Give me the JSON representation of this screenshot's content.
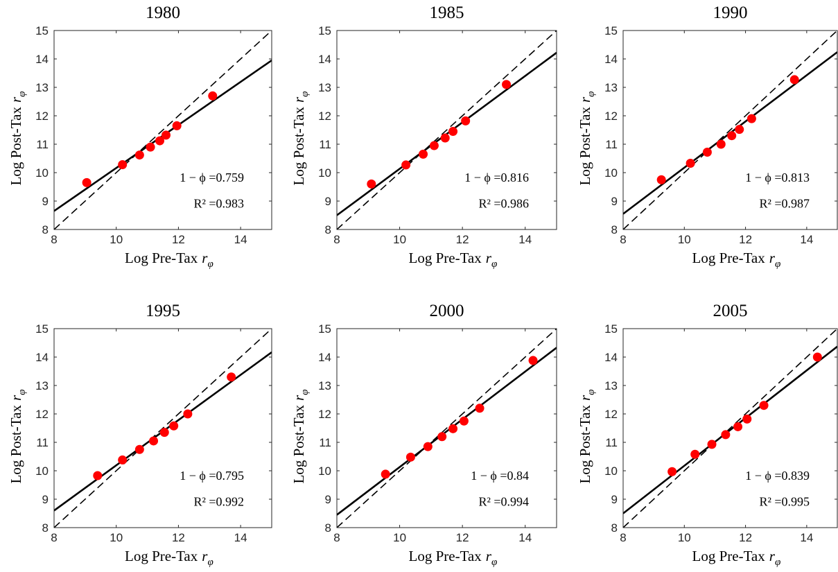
{
  "chart_data": [
    {
      "type": "scatter",
      "title": "1980",
      "xlabel": {
        "text": "Log Pre-Tax",
        "var": "r",
        "sub": "φ"
      },
      "ylabel": {
        "text": "Log Post-Tax",
        "var": "r",
        "sub": "φ"
      },
      "x": [
        9.05,
        10.2,
        10.75,
        11.1,
        11.4,
        11.6,
        11.95,
        13.1
      ],
      "values": [
        9.65,
        10.28,
        10.62,
        10.9,
        11.12,
        11.32,
        11.65,
        12.7
      ],
      "color": "#ff0000",
      "fit_line": {
        "x": [
          8,
          15
        ],
        "values": [
          8.65,
          13.95
        ]
      },
      "reference_line": {
        "x": [
          8,
          15
        ],
        "values": [
          8,
          15
        ]
      },
      "annotations": [
        "1 − ϕ =0.759",
        "R² =0.983"
      ],
      "xlim": [
        8,
        15
      ],
      "ylim": [
        8,
        15
      ],
      "xticks": [
        8,
        10,
        12,
        14
      ],
      "yticks": [
        8,
        9,
        10,
        11,
        12,
        13,
        14,
        15
      ]
    },
    {
      "type": "scatter",
      "title": "1985",
      "xlabel": {
        "text": "Log Pre-Tax",
        "var": "r",
        "sub": "φ"
      },
      "ylabel": {
        "text": "Log Post-Tax",
        "var": "r",
        "sub": "φ"
      },
      "x": [
        9.1,
        10.2,
        10.75,
        11.1,
        11.45,
        11.7,
        12.1,
        13.4
      ],
      "values": [
        9.6,
        10.27,
        10.65,
        10.95,
        11.22,
        11.45,
        11.82,
        13.1
      ],
      "color": "#ff0000",
      "fit_line": {
        "x": [
          8,
          15
        ],
        "values": [
          8.5,
          14.22
        ]
      },
      "reference_line": {
        "x": [
          8,
          15
        ],
        "values": [
          8,
          15
        ]
      },
      "annotations": [
        "1 − ϕ =0.816",
        "R² =0.986"
      ],
      "xlim": [
        8,
        15
      ],
      "ylim": [
        8,
        15
      ],
      "xticks": [
        8,
        10,
        12,
        14
      ],
      "yticks": [
        8,
        9,
        10,
        11,
        12,
        13,
        14,
        15
      ]
    },
    {
      "type": "scatter",
      "title": "1990",
      "xlabel": {
        "text": "Log Pre-Tax",
        "var": "r",
        "sub": "φ"
      },
      "ylabel": {
        "text": "Log Post-Tax",
        "var": "r",
        "sub": "φ"
      },
      "x": [
        9.25,
        10.2,
        10.75,
        11.2,
        11.55,
        11.8,
        12.2,
        13.6
      ],
      "values": [
        9.75,
        10.33,
        10.72,
        11.0,
        11.3,
        11.52,
        11.9,
        13.27
      ],
      "color": "#ff0000",
      "fit_line": {
        "x": [
          8,
          15
        ],
        "values": [
          8.55,
          14.24
        ]
      },
      "reference_line": {
        "x": [
          8,
          15
        ],
        "values": [
          8,
          15
        ]
      },
      "annotations": [
        "1 − ϕ =0.813",
        "R² =0.987"
      ],
      "xlim": [
        8,
        15
      ],
      "ylim": [
        8,
        15
      ],
      "xticks": [
        8,
        10,
        12,
        14
      ],
      "yticks": [
        8,
        9,
        10,
        11,
        12,
        13,
        14,
        15
      ]
    },
    {
      "type": "scatter",
      "title": "1995",
      "xlabel": {
        "text": "Log Pre-Tax",
        "var": "r",
        "sub": "φ"
      },
      "ylabel": {
        "text": "Log Post-Tax",
        "var": "r",
        "sub": "φ"
      },
      "x": [
        9.4,
        10.2,
        10.75,
        11.2,
        11.55,
        11.85,
        12.3,
        13.7
      ],
      "values": [
        9.83,
        10.38,
        10.75,
        11.05,
        11.35,
        11.58,
        12.0,
        13.3
      ],
      "color": "#ff0000",
      "fit_line": {
        "x": [
          8,
          15
        ],
        "values": [
          8.6,
          14.17
        ]
      },
      "reference_line": {
        "x": [
          8,
          15
        ],
        "values": [
          8,
          15
        ]
      },
      "annotations": [
        "1 − ϕ =0.795",
        "R² =0.992"
      ],
      "xlim": [
        8,
        15
      ],
      "ylim": [
        8,
        15
      ],
      "xticks": [
        8,
        10,
        12,
        14
      ],
      "yticks": [
        8,
        9,
        10,
        11,
        12,
        13,
        14,
        15
      ]
    },
    {
      "type": "scatter",
      "title": "2000",
      "xlabel": {
        "text": "Log Pre-Tax",
        "var": "r",
        "sub": "φ"
      },
      "ylabel": {
        "text": "Log Post-Tax",
        "var": "r",
        "sub": "φ"
      },
      "x": [
        9.55,
        10.35,
        10.9,
        11.35,
        11.7,
        12.05,
        12.55,
        14.25
      ],
      "values": [
        9.88,
        10.48,
        10.85,
        11.2,
        11.48,
        11.75,
        12.2,
        13.88
      ],
      "color": "#ff0000",
      "fit_line": {
        "x": [
          8,
          15
        ],
        "values": [
          8.45,
          14.33
        ]
      },
      "reference_line": {
        "x": [
          8,
          15
        ],
        "values": [
          8,
          15
        ]
      },
      "annotations": [
        "1 − ϕ =0.84",
        "R² =0.994"
      ],
      "xlim": [
        8,
        15
      ],
      "ylim": [
        8,
        15
      ],
      "xticks": [
        8,
        10,
        12,
        14
      ],
      "yticks": [
        8,
        9,
        10,
        11,
        12,
        13,
        14,
        15
      ]
    },
    {
      "type": "scatter",
      "title": "2005",
      "xlabel": {
        "text": "Log Pre-Tax",
        "var": "r",
        "sub": "φ"
      },
      "ylabel": {
        "text": "Log Post-Tax",
        "var": "r",
        "sub": "φ"
      },
      "x": [
        9.6,
        10.35,
        10.9,
        11.35,
        11.75,
        12.05,
        12.6,
        14.35
      ],
      "values": [
        9.97,
        10.58,
        10.93,
        11.27,
        11.55,
        11.82,
        12.3,
        14.0
      ],
      "color": "#ff0000",
      "fit_line": {
        "x": [
          8,
          15
        ],
        "values": [
          8.5,
          14.37
        ]
      },
      "reference_line": {
        "x": [
          8,
          15
        ],
        "values": [
          8,
          15
        ]
      },
      "annotations": [
        "1 − ϕ =0.839",
        "R² =0.995"
      ],
      "xlim": [
        8,
        15
      ],
      "ylim": [
        8,
        15
      ],
      "xticks": [
        8,
        10,
        12,
        14
      ],
      "yticks": [
        8,
        9,
        10,
        11,
        12,
        13,
        14,
        15
      ]
    }
  ]
}
